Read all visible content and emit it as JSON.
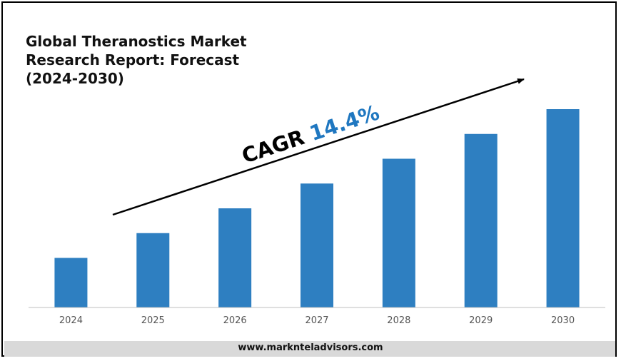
{
  "title_lines": [
    "Global Theranostics Market",
    "Research Report: Forecast",
    "(2024-2030)"
  ],
  "cagr": {
    "prefix": "CAGR",
    "value": "14.4%"
  },
  "footer": "www.marknteladvisors.com",
  "colors": {
    "bar": "#2e7fc1",
    "cagr_value": "#1f77c0",
    "axis_text": "#555555"
  },
  "chart_data": {
    "type": "bar",
    "categories": [
      "2024",
      "2025",
      "2026",
      "2027",
      "2028",
      "2029",
      "2030"
    ],
    "values": [
      1.0,
      1.5,
      2.0,
      2.5,
      3.0,
      3.5,
      4.0
    ],
    "ylim": [
      0,
      4.5
    ],
    "grid": false,
    "xlabel": "",
    "ylabel": "",
    "annotation": "CAGR 14.4%"
  }
}
